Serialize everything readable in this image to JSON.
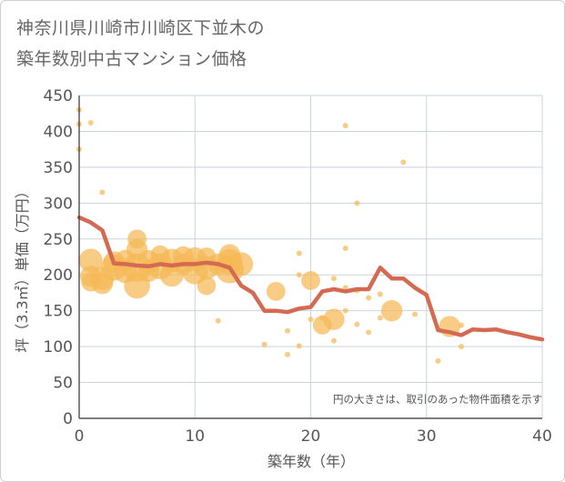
{
  "title_line1": "神奈川県川崎市川崎区下並木の",
  "title_line2": "築年数別中古マンション価格",
  "chart_data": {
    "type": "scatter",
    "xlabel": "築年数（年）",
    "ylabel": "坪（3.3㎡）単価（万円）",
    "xlim": [
      0,
      40
    ],
    "ylim": [
      0,
      450
    ],
    "xticks": [
      0,
      10,
      20,
      30,
      40
    ],
    "yticks": [
      0,
      50,
      100,
      150,
      200,
      250,
      300,
      350,
      400,
      450
    ],
    "grid": true,
    "note": "円の大きさは、取引のあった物件面積を示す",
    "colors": {
      "bubble": "#f5b955",
      "line": "#d46a52",
      "grid": "#c9d3de",
      "axis": "#333333"
    },
    "bubbles": [
      {
        "x": 0,
        "y": 430,
        "s": 2
      },
      {
        "x": 0,
        "y": 410,
        "s": 2
      },
      {
        "x": 0,
        "y": 375,
        "s": 2
      },
      {
        "x": 1,
        "y": 412,
        "s": 2
      },
      {
        "x": 2,
        "y": 315,
        "s": 2
      },
      {
        "x": 1,
        "y": 220,
        "s": 10
      },
      {
        "x": 1,
        "y": 198,
        "s": 9
      },
      {
        "x": 1,
        "y": 190,
        "s": 8
      },
      {
        "x": 2,
        "y": 195,
        "s": 10
      },
      {
        "x": 2,
        "y": 188,
        "s": 9
      },
      {
        "x": 3,
        "y": 218,
        "s": 9
      },
      {
        "x": 3,
        "y": 210,
        "s": 11
      },
      {
        "x": 4,
        "y": 220,
        "s": 9
      },
      {
        "x": 4,
        "y": 205,
        "s": 10
      },
      {
        "x": 5,
        "y": 250,
        "s": 8
      },
      {
        "x": 5,
        "y": 235,
        "s": 9
      },
      {
        "x": 5,
        "y": 210,
        "s": 12
      },
      {
        "x": 5,
        "y": 185,
        "s": 11
      },
      {
        "x": 6,
        "y": 218,
        "s": 10
      },
      {
        "x": 6,
        "y": 205,
        "s": 9
      },
      {
        "x": 7,
        "y": 228,
        "s": 8
      },
      {
        "x": 7,
        "y": 212,
        "s": 11
      },
      {
        "x": 8,
        "y": 220,
        "s": 10
      },
      {
        "x": 8,
        "y": 200,
        "s": 10
      },
      {
        "x": 9,
        "y": 225,
        "s": 9
      },
      {
        "x": 9,
        "y": 215,
        "s": 9
      },
      {
        "x": 10,
        "y": 222,
        "s": 10
      },
      {
        "x": 10,
        "y": 205,
        "s": 11
      },
      {
        "x": 11,
        "y": 225,
        "s": 8
      },
      {
        "x": 11,
        "y": 210,
        "s": 10
      },
      {
        "x": 11,
        "y": 185,
        "s": 8
      },
      {
        "x": 12,
        "y": 215,
        "s": 9
      },
      {
        "x": 12,
        "y": 136,
        "s": 2
      },
      {
        "x": 13,
        "y": 228,
        "s": 9
      },
      {
        "x": 13,
        "y": 218,
        "s": 11
      },
      {
        "x": 13,
        "y": 208,
        "s": 12
      },
      {
        "x": 14,
        "y": 215,
        "s": 10
      },
      {
        "x": 16,
        "y": 103,
        "s": 2
      },
      {
        "x": 17,
        "y": 177,
        "s": 8
      },
      {
        "x": 18,
        "y": 122,
        "s": 2
      },
      {
        "x": 18,
        "y": 89,
        "s": 2
      },
      {
        "x": 19,
        "y": 230,
        "s": 2
      },
      {
        "x": 19,
        "y": 200,
        "s": 2
      },
      {
        "x": 19,
        "y": 101,
        "s": 2
      },
      {
        "x": 20,
        "y": 192,
        "s": 8
      },
      {
        "x": 20,
        "y": 138,
        "s": 2
      },
      {
        "x": 21,
        "y": 140,
        "s": 2
      },
      {
        "x": 21,
        "y": 130,
        "s": 8
      },
      {
        "x": 22,
        "y": 195,
        "s": 2
      },
      {
        "x": 22,
        "y": 138,
        "s": 9
      },
      {
        "x": 22,
        "y": 108,
        "s": 2
      },
      {
        "x": 23,
        "y": 408,
        "s": 2
      },
      {
        "x": 23,
        "y": 237,
        "s": 2
      },
      {
        "x": 23,
        "y": 182,
        "s": 2
      },
      {
        "x": 23,
        "y": 150,
        "s": 2
      },
      {
        "x": 24,
        "y": 300,
        "s": 2
      },
      {
        "x": 24,
        "y": 178,
        "s": 2
      },
      {
        "x": 24,
        "y": 131,
        "s": 2
      },
      {
        "x": 25,
        "y": 168,
        "s": 2
      },
      {
        "x": 25,
        "y": 120,
        "s": 2
      },
      {
        "x": 26,
        "y": 173,
        "s": 2
      },
      {
        "x": 26,
        "y": 140,
        "s": 2
      },
      {
        "x": 27,
        "y": 150,
        "s": 9
      },
      {
        "x": 28,
        "y": 357,
        "s": 2
      },
      {
        "x": 29,
        "y": 145,
        "s": 2
      },
      {
        "x": 31,
        "y": 80,
        "s": 2
      },
      {
        "x": 32,
        "y": 128,
        "s": 9
      },
      {
        "x": 33,
        "y": 130,
        "s": 2
      },
      {
        "x": 33,
        "y": 100,
        "s": 2
      }
    ],
    "series": [
      {
        "x": [
          0,
          1,
          2,
          3,
          4,
          5,
          6,
          7,
          8,
          9,
          10,
          11,
          12,
          13,
          14,
          15,
          16,
          17,
          18,
          19,
          20,
          21,
          22,
          23,
          24,
          25,
          26,
          27,
          28,
          29,
          30,
          31,
          32,
          33,
          34,
          35,
          36,
          37,
          38,
          39,
          40
        ],
        "values": [
          280,
          273,
          262,
          216,
          215,
          213,
          212,
          215,
          213,
          215,
          215,
          217,
          215,
          210,
          185,
          175,
          150,
          150,
          148,
          153,
          155,
          177,
          180,
          177,
          180,
          180,
          210,
          195,
          195,
          182,
          172,
          123,
          120,
          116,
          124,
          123,
          124,
          120,
          117,
          113,
          110
        ]
      }
    ]
  }
}
